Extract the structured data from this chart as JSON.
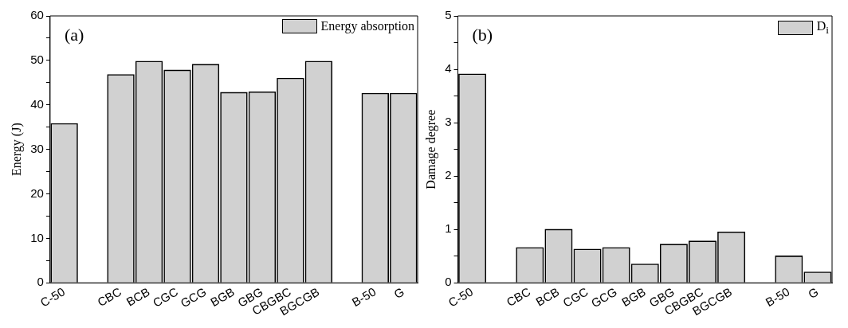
{
  "chart_data": [
    {
      "type": "bar",
      "categories": [
        "C-50",
        null,
        "CBC",
        "BCB",
        "CGC",
        "GCG",
        "BGB",
        "GBG",
        "CBGBC",
        "BGCGB",
        null,
        "B-50",
        "G"
      ],
      "series": [
        {
          "name": "Energy absorption",
          "color": "#000000",
          "values": [
            35.9,
            null,
            46.9,
            49.9,
            47.9,
            49.2,
            42.9,
            43.0,
            46.1,
            49.9,
            null,
            42.7,
            42.7
          ]
        }
      ],
      "ylabel": "Energy (J)",
      "ylim": [
        0,
        60
      ],
      "yticks": [
        0,
        {
          "value": 5,
          "label": null
        },
        10,
        {
          "value": 15,
          "label": null
        },
        20,
        {
          "value": 25,
          "label": null
        },
        30,
        {
          "value": 35,
          "label": null
        },
        40,
        {
          "value": 45,
          "label": null
        },
        50,
        {
          "value": 55,
          "label": null
        },
        60
      ],
      "legend": "top right",
      "annotations": [
        "(a)"
      ]
    },
    {
      "type": "bar",
      "categories": [
        "C-50",
        null,
        "CBC",
        "BCB",
        "CGC",
        "GCG",
        "BGB",
        "GBG",
        "CBGBC",
        "BGCGB",
        null,
        "B-50",
        "G"
      ],
      "series": [
        {
          "name": "D$_{i}$",
          "color": "#000000",
          "values": [
            3.92,
            null,
            0.67,
            1.01,
            0.64,
            0.67,
            0.36,
            0.73,
            0.79,
            0.96,
            null,
            0.51,
            0.21
          ]
        }
      ],
      "ylabel": "Damage degree",
      "ylim": [
        0,
        5
      ],
      "yticks": [
        0,
        {
          "value": 0.5,
          "label": null
        },
        1,
        {
          "value": 1.5,
          "label": null
        },
        2,
        {
          "value": 2.5,
          "label": null
        },
        3,
        {
          "value": 3.5,
          "label": null
        },
        4,
        {
          "value": 4.5,
          "label": null
        },
        5
      ],
      "legend": "top right",
      "annotations": [
        "(b)"
      ]
    }
  ]
}
